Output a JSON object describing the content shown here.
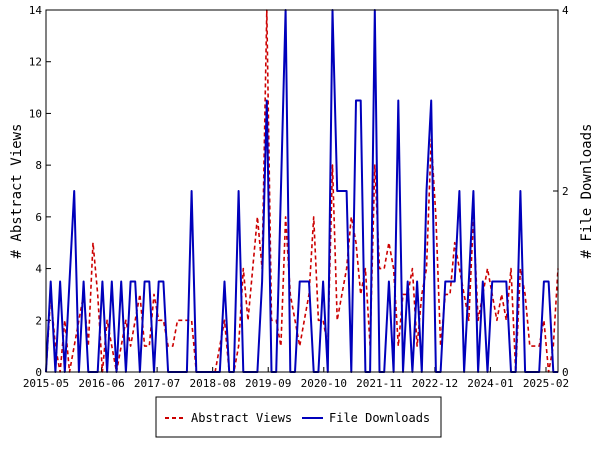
{
  "chart_data": {
    "type": "line",
    "xlabel": "",
    "ylabel": "# Abstract Views",
    "y2label": "# File Downloads",
    "x_tick_labels": [
      "2015-05",
      "2016-06",
      "2017-07",
      "2018-08",
      "2019-09",
      "2020-10",
      "2021-11",
      "2022-12",
      "2024-01",
      "2025-02"
    ],
    "ylim": [
      0,
      14
    ],
    "y_ticks": [
      0,
      2,
      4,
      6,
      8,
      10,
      12,
      14
    ],
    "y2lim": [
      0,
      4
    ],
    "y2_ticks": [
      0,
      2,
      4
    ],
    "legend_position": "bottom-center",
    "series": [
      {
        "name": "Abstract Views",
        "axis": "left",
        "style": "dashed",
        "color": "#cc0000",
        "values": [
          0,
          3,
          1,
          0,
          2,
          0,
          1,
          2,
          3,
          1,
          5,
          3,
          0,
          2,
          1,
          0,
          1,
          2,
          1,
          2,
          3,
          1,
          1,
          3,
          2,
          2,
          1,
          1,
          2,
          2,
          2,
          2,
          0,
          0,
          0,
          0,
          0,
          1,
          2,
          0,
          0,
          1,
          4,
          2,
          4,
          6,
          4,
          14,
          2,
          2,
          1,
          6,
          3,
          2,
          1,
          2,
          3,
          6,
          2,
          2,
          1,
          8,
          2,
          3,
          4,
          6,
          5,
          3,
          4,
          1,
          8,
          4,
          4,
          5,
          4,
          1,
          3,
          3,
          4,
          1,
          3,
          4,
          9,
          6,
          1,
          3,
          3,
          5,
          4,
          3,
          2,
          6,
          2,
          3,
          4,
          3,
          2,
          3,
          2,
          4,
          0,
          4,
          3,
          1,
          1,
          1,
          2,
          0,
          1,
          4
        ]
      },
      {
        "name": "File Downloads",
        "axis": "right",
        "style": "solid",
        "color": "#0000bb",
        "values": [
          0,
          1,
          0,
          1,
          0,
          1,
          2,
          0,
          1,
          0,
          0,
          0,
          1,
          0,
          1,
          0,
          1,
          0,
          1,
          1,
          0,
          1,
          1,
          0,
          1,
          1,
          0,
          0,
          0,
          0,
          0,
          2,
          0,
          0,
          0,
          0,
          0,
          0,
          1,
          0,
          0,
          2,
          0,
          0,
          0,
          0,
          1,
          3,
          0,
          0,
          2,
          4,
          0,
          0,
          1,
          1,
          1,
          0,
          0,
          1,
          0,
          4,
          2,
          2,
          2,
          0,
          3,
          3,
          0,
          0,
          4,
          0,
          0,
          1,
          0,
          3,
          0,
          1,
          0,
          1,
          0,
          2,
          3,
          0,
          0,
          1,
          1,
          1,
          2,
          0,
          1,
          2,
          0,
          1,
          0,
          1,
          1,
          1,
          1,
          0,
          0,
          2,
          0,
          0,
          0,
          0,
          1,
          1,
          0,
          0
        ]
      }
    ]
  }
}
